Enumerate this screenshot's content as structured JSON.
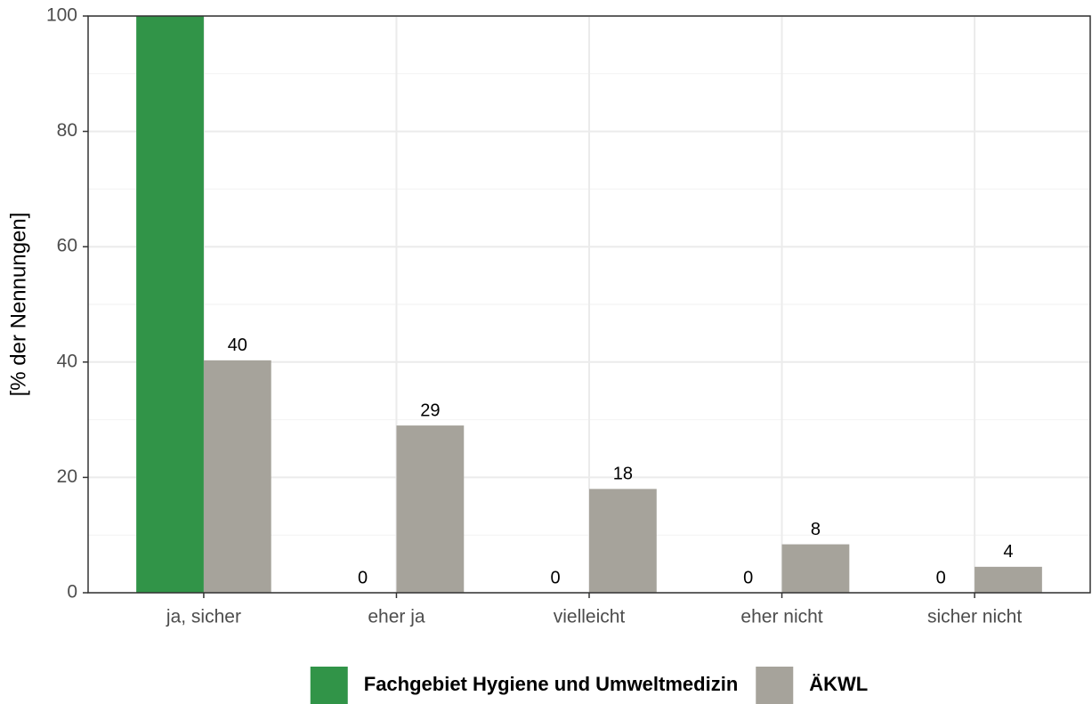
{
  "chart_data": {
    "type": "bar",
    "y_label": "[% der Nennungen]",
    "categories": [
      "ja, sicher",
      "eher ja",
      "vielleicht",
      "eher nicht",
      "sicher nicht"
    ],
    "series": [
      {
        "name": "Fachgebiet Hygiene und Umweltmedizin",
        "color": "#319448",
        "values": [
          100,
          0,
          0,
          0,
          0
        ],
        "value_labels": [
          null,
          "0",
          "0",
          "0",
          "0"
        ]
      },
      {
        "name": "ÄKWL",
        "color": "#a6a39b",
        "values": [
          40.3,
          29,
          18,
          8.4,
          4.5
        ],
        "value_labels": [
          "40",
          "29",
          "18",
          "8",
          "4"
        ]
      }
    ],
    "ylim": [
      0,
      100
    ],
    "yticks": [
      0,
      20,
      40,
      60,
      80,
      100
    ],
    "grid": true,
    "legend": "bottom"
  }
}
